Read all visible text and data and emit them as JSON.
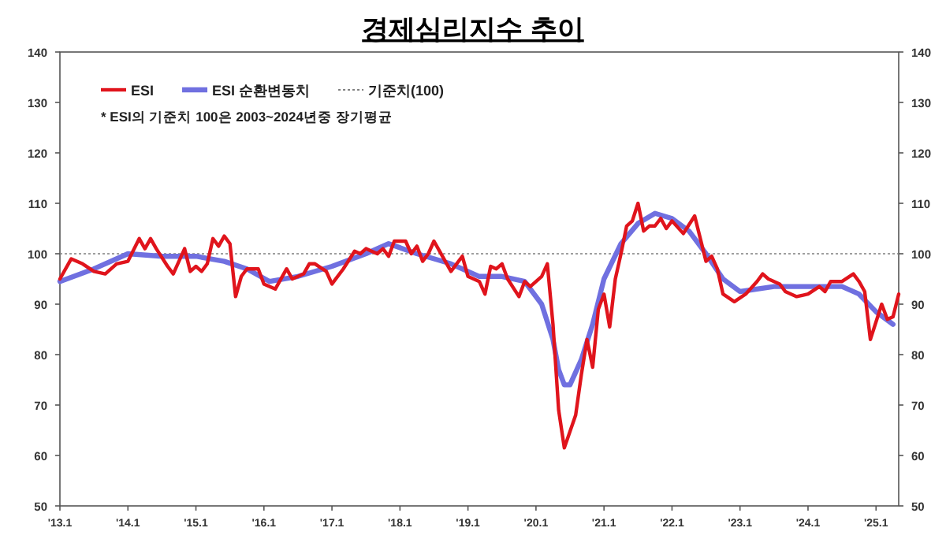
{
  "chart_data": {
    "type": "line",
    "title": "경제심리지수 추이",
    "annotations": [
      "* ESI의 기준치 100은 2003~2024년중 장기평균"
    ],
    "xlim": [
      "2013-01",
      "2025-05"
    ],
    "xticks": [
      {
        "value": "2013-01",
        "label": "'13.1"
      },
      {
        "value": "2014-01",
        "label": "'14.1"
      },
      {
        "value": "2015-01",
        "label": "'15.1"
      },
      {
        "value": "2016-01",
        "label": "'16.1"
      },
      {
        "value": "2017-01",
        "label": "'17.1"
      },
      {
        "value": "2018-01",
        "label": "'18.1"
      },
      {
        "value": "2019-01",
        "label": "'19.1"
      },
      {
        "value": "2020-01",
        "label": "'20.1"
      },
      {
        "value": "2021-01",
        "label": "'21.1"
      },
      {
        "value": "2022-01",
        "label": "'22.1"
      },
      {
        "value": "2023-01",
        "label": "'23.1"
      },
      {
        "value": "2024-01",
        "label": "'24.1"
      },
      {
        "value": "2025-01",
        "label": "'25.1"
      }
    ],
    "ylim": [
      50,
      140
    ],
    "yticks": [
      50,
      60,
      70,
      80,
      90,
      100,
      110,
      120,
      130,
      140
    ],
    "y2lim": [
      50,
      140
    ],
    "y2ticks": [
      50,
      60,
      70,
      80,
      90,
      100,
      110,
      120,
      130,
      140
    ],
    "legend": "top left",
    "grid": false,
    "line_style": "solid",
    "marker": "none",
    "ref_lines": [
      {
        "axis": "y",
        "value": 100,
        "label": "기준치(100)",
        "color": "#808080",
        "line_style": "dotted"
      }
    ],
    "series": [
      {
        "name": "ESI",
        "color": "#e0141c",
        "x": [
          "2013-01",
          "2013-03",
          "2013-05",
          "2013-07",
          "2013-09",
          "2013-11",
          "2014-01",
          "2014-03",
          "2014-04",
          "2014-05",
          "2014-06",
          "2014-08",
          "2014-09",
          "2014-11",
          "2014-12",
          "2015-01",
          "2015-02",
          "2015-03",
          "2015-04",
          "2015-05",
          "2015-06",
          "2015-07",
          "2015-08",
          "2015-09",
          "2015-10",
          "2015-12",
          "2016-01",
          "2016-03",
          "2016-05",
          "2016-06",
          "2016-08",
          "2016-09",
          "2016-10",
          "2016-12",
          "2017-01",
          "2017-03",
          "2017-05",
          "2017-06",
          "2017-07",
          "2017-09",
          "2017-10",
          "2017-11",
          "2017-12",
          "2018-02",
          "2018-03",
          "2018-04",
          "2018-05",
          "2018-06",
          "2018-07",
          "2018-08",
          "2018-10",
          "2018-12",
          "2019-01",
          "2019-03",
          "2019-04",
          "2019-05",
          "2019-06",
          "2019-07",
          "2019-08",
          "2019-10",
          "2019-11",
          "2019-12",
          "2020-02",
          "2020-03",
          "2020-04",
          "2020-05",
          "2020-06",
          "2020-08",
          "2020-09",
          "2020-10",
          "2020-11",
          "2020-12",
          "2021-01",
          "2021-02",
          "2021-03",
          "2021-04",
          "2021-05",
          "2021-06",
          "2021-07",
          "2021-08",
          "2021-09",
          "2021-10",
          "2021-11",
          "2021-12",
          "2022-01",
          "2022-03",
          "2022-05",
          "2022-07",
          "2022-08",
          "2022-09",
          "2022-10",
          "2022-12",
          "2023-02",
          "2023-04",
          "2023-05",
          "2023-06",
          "2023-08",
          "2023-09",
          "2023-11",
          "2024-01",
          "2024-03",
          "2024-04",
          "2024-05",
          "2024-07",
          "2024-09",
          "2024-10",
          "2024-11",
          "2024-12",
          "2025-02",
          "2025-03",
          "2025-04",
          "2025-05"
        ],
        "values": [
          95,
          99,
          98,
          96.5,
          96,
          98,
          98.5,
          103,
          101,
          103,
          101,
          97.5,
          96,
          101,
          96.5,
          97.5,
          96.5,
          98,
          103,
          101.5,
          103.5,
          102,
          91.5,
          95.5,
          97,
          97,
          94,
          93,
          97,
          95,
          96,
          98,
          98,
          96.5,
          94,
          97,
          100.5,
          100,
          101,
          100,
          101,
          99.5,
          102.5,
          102.5,
          100,
          101.5,
          98.5,
          100,
          102.5,
          100.5,
          96.5,
          99.5,
          95.5,
          94.5,
          92,
          97.5,
          97,
          98,
          95,
          91.5,
          94.5,
          93.5,
          95.5,
          98,
          86,
          69,
          61.5,
          68,
          76,
          83,
          77.5,
          89,
          92,
          85.5,
          95,
          100,
          105.5,
          106.5,
          110,
          104.5,
          105.5,
          105.5,
          107,
          105,
          106.5,
          104,
          107.5,
          98.5,
          99.5,
          97,
          92,
          90.5,
          92,
          94.5,
          96,
          95,
          94,
          92.5,
          91.5,
          92,
          93.5,
          92.5,
          94.5,
          94.5,
          96,
          94.5,
          92.5,
          83,
          90,
          87,
          87.5,
          92
        ]
      },
      {
        "name": "ESI 순환변동치",
        "color": "#7070e0",
        "x": [
          "2013-01",
          "2013-07",
          "2014-01",
          "2014-07",
          "2015-01",
          "2015-06",
          "2015-10",
          "2016-02",
          "2016-07",
          "2017-01",
          "2017-07",
          "2017-11",
          "2018-04",
          "2018-10",
          "2019-03",
          "2019-07",
          "2019-11",
          "2020-02",
          "2020-04",
          "2020-05",
          "2020-06",
          "2020-07",
          "2020-09",
          "2020-11",
          "2021-01",
          "2021-04",
          "2021-07",
          "2021-10",
          "2022-01",
          "2022-04",
          "2022-07",
          "2022-10",
          "2023-01",
          "2023-07",
          "2024-01",
          "2024-07",
          "2024-10",
          "2025-01",
          "2025-04"
        ],
        "values": [
          94.5,
          97,
          100,
          99.5,
          99.5,
          98.5,
          97,
          94.5,
          95.5,
          97.5,
          100,
          102,
          100,
          98,
          95.5,
          95.5,
          94.5,
          90,
          83,
          77,
          74,
          74,
          79,
          86,
          95,
          102,
          106,
          108,
          107,
          104.5,
          100,
          95,
          92.5,
          93.5,
          93.5,
          93.5,
          92,
          88.5,
          86
        ]
      }
    ]
  }
}
